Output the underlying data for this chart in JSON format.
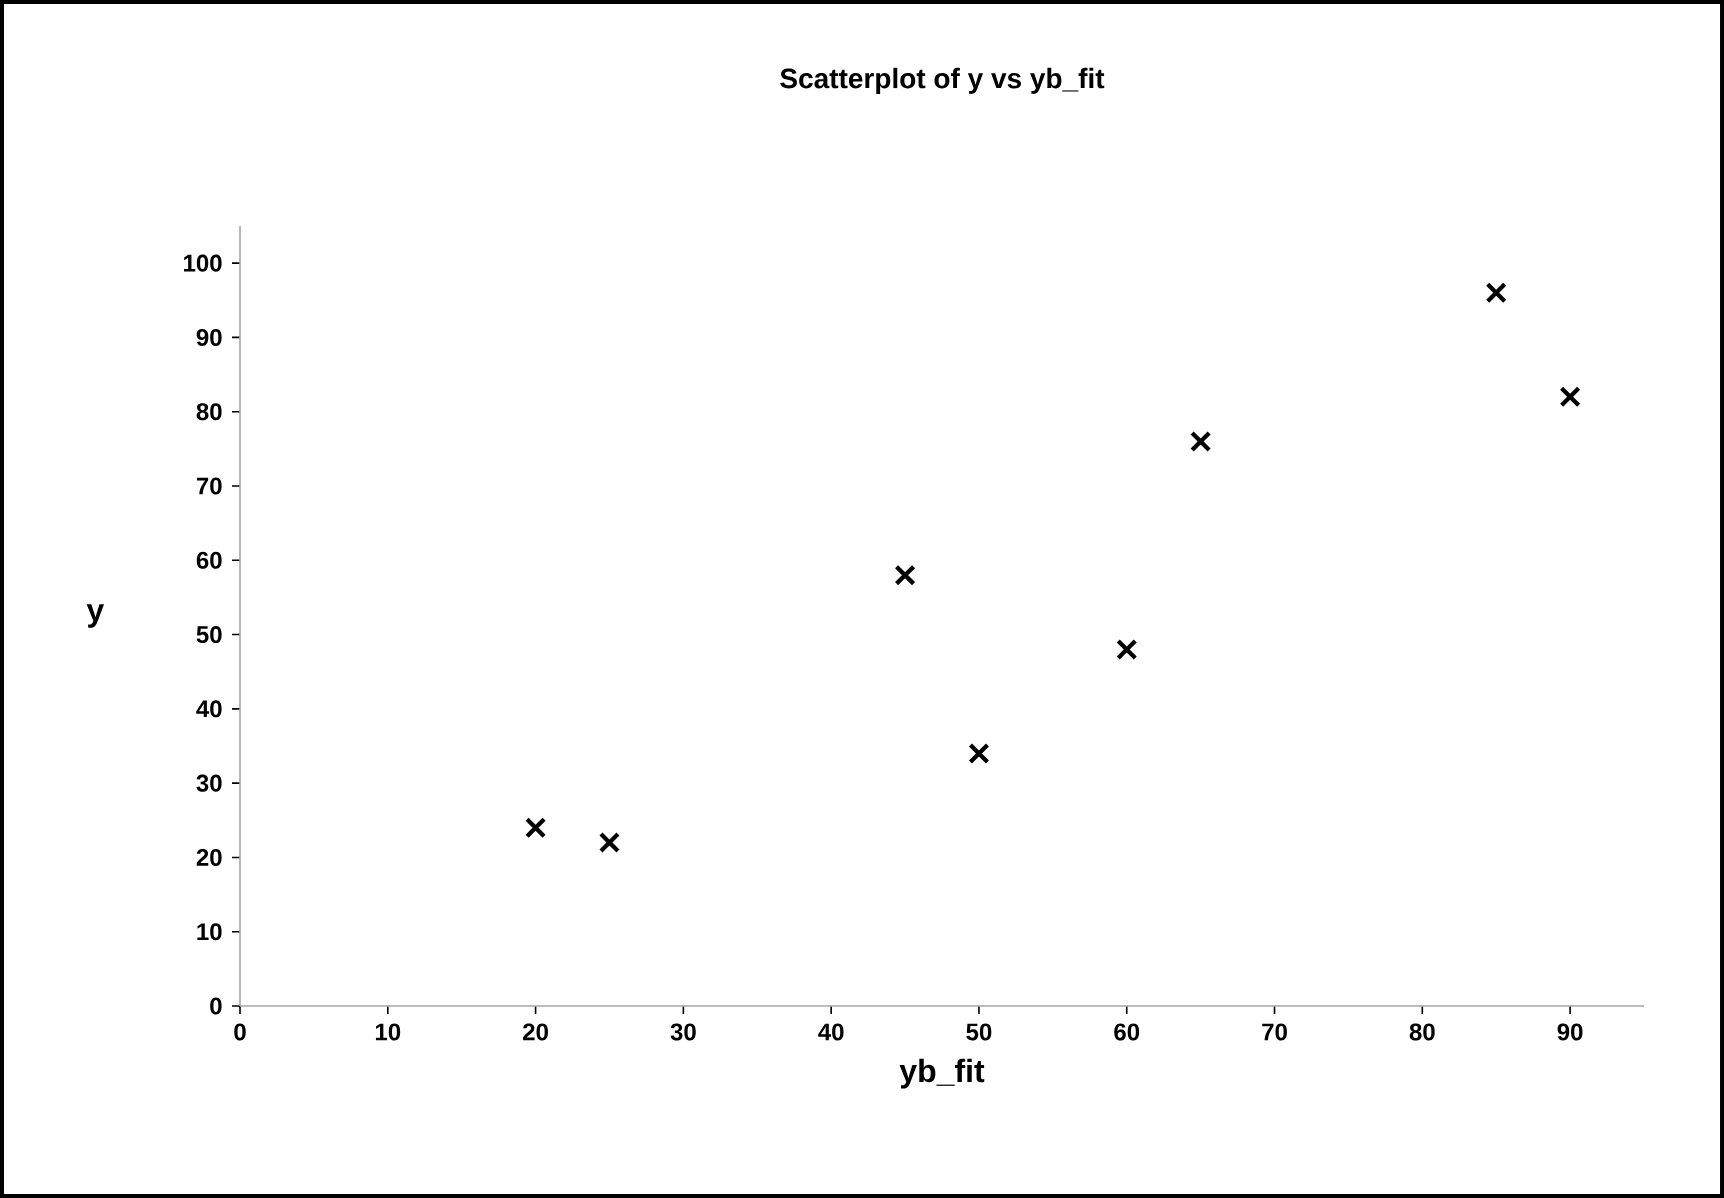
{
  "chart_data": {
    "type": "scatter",
    "title": "Scatterplot of y vs yb_fit",
    "xlabel": "yb_fit",
    "ylabel": "y",
    "x": [
      20,
      25,
      45,
      50,
      60,
      65,
      85,
      90
    ],
    "values": [
      24,
      22,
      58,
      34,
      48,
      76,
      96,
      82
    ],
    "color": "#000000",
    "marker": "cross",
    "xlim": [
      0,
      95
    ],
    "xticks": [
      0,
      10,
      20,
      30,
      40,
      50,
      60,
      70,
      80,
      90
    ],
    "ylim": [
      0,
      105
    ],
    "yticks": [
      0,
      10,
      20,
      30,
      40,
      50,
      60,
      70,
      80,
      90,
      100
    ],
    "grid": false
  }
}
